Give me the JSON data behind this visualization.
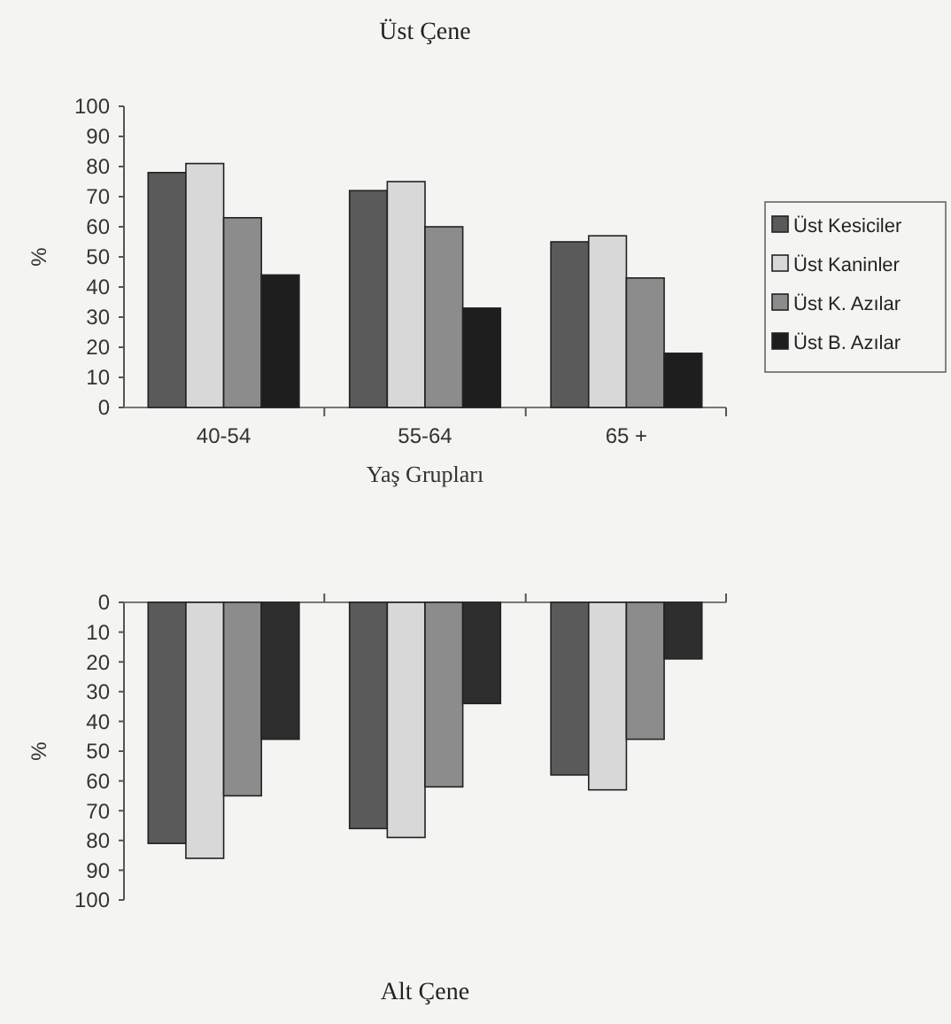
{
  "chart_data": [
    {
      "type": "bar",
      "title": "Üst Çene",
      "xlabel": "Yaş Grupları",
      "ylabel": "%",
      "categories": [
        "40-54",
        "55-64",
        "65 +"
      ],
      "series": [
        {
          "name": "Üst Kesiciler",
          "color": "#5a5a5a",
          "values": [
            78,
            72,
            55
          ]
        },
        {
          "name": "Üst Kaninler",
          "color": "#d8d8d8",
          "values": [
            81,
            75,
            57
          ]
        },
        {
          "name": "Üst K. Azılar",
          "color": "#8c8c8c",
          "values": [
            63,
            60,
            43
          ]
        },
        {
          "name": "Üst B. Azılar",
          "color": "#1e1e1e",
          "values": [
            44,
            33,
            18
          ]
        }
      ],
      "ylim": [
        0,
        100
      ],
      "yticks": [
        0,
        10,
        20,
        30,
        40,
        50,
        60,
        70,
        80,
        90,
        100
      ],
      "grid": false,
      "legend": "right"
    },
    {
      "type": "bar",
      "title": "Alt Çene",
      "ylabel": "%",
      "categories": [
        null,
        null,
        null
      ],
      "series": [
        {
          "color": "#5a5a5a",
          "values": [
            81,
            76,
            58
          ]
        },
        {
          "color": "#d8d8d8",
          "values": [
            86,
            79,
            63
          ]
        },
        {
          "color": "#8c8c8c",
          "values": [
            65,
            62,
            46
          ]
        },
        {
          "color": "#2e2e2e",
          "values": [
            46,
            34,
            19
          ]
        }
      ],
      "ylim": [
        100,
        0
      ],
      "yticks": [
        0,
        10,
        20,
        30,
        40,
        50,
        60,
        70,
        80,
        90,
        100
      ],
      "grid": false
    }
  ]
}
